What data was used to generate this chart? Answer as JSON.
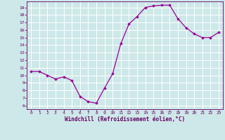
{
  "x": [
    0,
    1,
    2,
    3,
    4,
    5,
    6,
    7,
    8,
    9,
    10,
    11,
    12,
    13,
    14,
    15,
    16,
    17,
    18,
    19,
    20,
    21,
    22,
    23
  ],
  "y": [
    10.5,
    10.5,
    10.0,
    9.5,
    9.8,
    9.3,
    7.2,
    6.5,
    6.3,
    8.3,
    10.2,
    14.2,
    16.8,
    17.8,
    19.0,
    19.2,
    19.3,
    19.3,
    17.5,
    16.3,
    15.5,
    15.0,
    15.0,
    15.7
  ],
  "xlabel": "Windchill (Refroidissement éolien,°C)",
  "xlim": [
    -0.5,
    23.5
  ],
  "ylim": [
    5.5,
    19.8
  ],
  "yticks": [
    6,
    7,
    8,
    9,
    10,
    11,
    12,
    13,
    14,
    15,
    16,
    17,
    18,
    19
  ],
  "xticks": [
    0,
    1,
    2,
    3,
    4,
    5,
    6,
    7,
    8,
    9,
    10,
    11,
    12,
    13,
    14,
    15,
    16,
    17,
    18,
    19,
    20,
    21,
    22,
    23
  ],
  "line_color": "#990099",
  "marker": "D",
  "marker_size": 1.8,
  "bg_color": "#cde8e8",
  "grid_color": "#b0d0d0",
  "label_color": "#660066",
  "tick_color": "#660066",
  "spine_color": "#660066"
}
